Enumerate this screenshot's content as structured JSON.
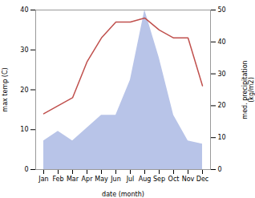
{
  "chart_data": {
    "type": "line",
    "categories": [
      "Jan",
      "Feb",
      "Mar",
      "Apr",
      "May",
      "Jun",
      "Jul",
      "Aug",
      "Sep",
      "Oct",
      "Nov",
      "Dec"
    ],
    "xlabel": "date (month)",
    "ylabel": "max temp (C)",
    "y2label": "med. precipitation\n(kg/m2)",
    "ylim": [
      0,
      40
    ],
    "yticks": [
      0,
      10,
      20,
      30,
      40
    ],
    "y2lim": [
      0,
      50
    ],
    "y2ticks": [
      0,
      10,
      20,
      30,
      40,
      50
    ],
    "series": [
      {
        "type": "area",
        "axis": "y2",
        "color": "#b8c4e8",
        "values": [
          9,
          12,
          9,
          13,
          17,
          17,
          28,
          50,
          35,
          17,
          9,
          8
        ]
      },
      {
        "type": "line",
        "color": "#c0504d",
        "values": [
          14,
          16,
          18,
          27,
          33,
          37,
          37,
          38,
          35,
          33,
          33,
          21
        ]
      }
    ]
  }
}
